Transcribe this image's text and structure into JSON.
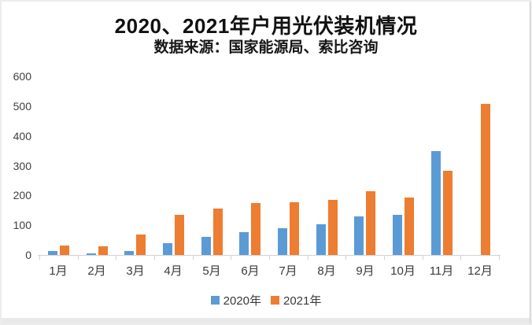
{
  "chart_data": {
    "type": "bar",
    "title": "2020、2021年户用光伏装机情况",
    "subtitle": "数据来源：国家能源局、索比咨询",
    "categories": [
      "1月",
      "2月",
      "3月",
      "4月",
      "5月",
      "6月",
      "7月",
      "8月",
      "9月",
      "10月",
      "11月",
      "12月"
    ],
    "series": [
      {
        "name": "2020年",
        "color": "#5B9BD5",
        "values": [
          13,
          5,
          14,
          40,
          61,
          77,
          89,
          102,
          129,
          135,
          348,
          0
        ]
      },
      {
        "name": "2021年",
        "color": "#ED7D31",
        "values": [
          33,
          29,
          69,
          136,
          156,
          174,
          177,
          186,
          213,
          192,
          283,
          508
        ]
      }
    ],
    "ylabel": "",
    "xlabel": "",
    "ylim": [
      0,
      600
    ],
    "y_ticks": [
      0,
      100,
      200,
      300,
      400,
      500,
      600
    ],
    "grid": "off",
    "legend_position": "bottom",
    "colors": {
      "series_2020": "#5B9BD5",
      "series_2021": "#ED7D31",
      "axis_line": "#d2d2d2",
      "axis_text": "#3f3f3f",
      "title_text": "#111111"
    }
  }
}
